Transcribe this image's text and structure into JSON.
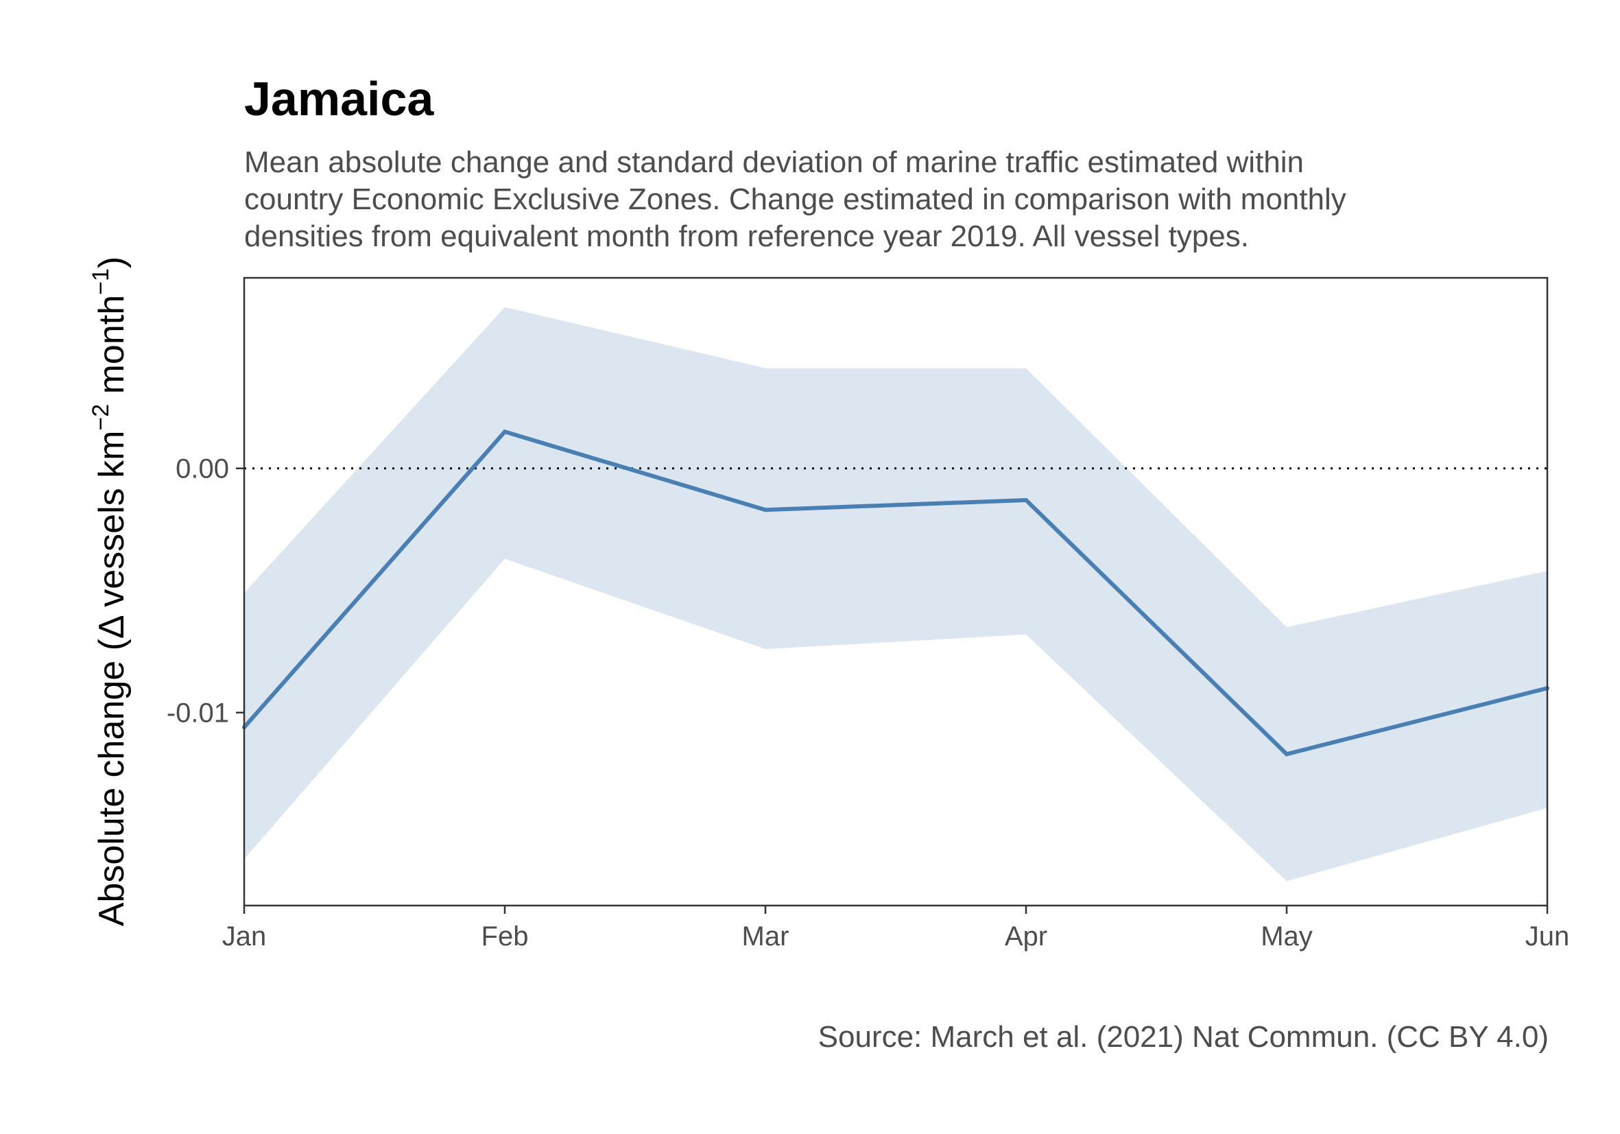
{
  "chart_data": {
    "type": "line",
    "title": "Jamaica",
    "subtitle_lines": [
      "Mean absolute change and standard deviation of marine traffic estimated within",
      "country Economic Exclusive Zones. Change estimated in comparison with monthly",
      "densities from equivalent month from reference year 2019. All vessel types."
    ],
    "caption": "Source: March et al. (2021) Nat Commun. (CC BY 4.0)",
    "ylabel": {
      "before": "Absolute change (",
      "delta": "Δ",
      "vessels": " vessels km",
      "exp1": "−2",
      "month": " month",
      "exp2": "−1",
      "after": ")"
    },
    "xlabel": "",
    "categories": [
      "Jan",
      "Feb",
      "Mar",
      "Apr",
      "May",
      "Jun"
    ],
    "y_ticks": [
      {
        "value": 0.0,
        "label": "0.00"
      },
      {
        "value": -0.01,
        "label": "-0.01"
      }
    ],
    "ylim": [
      -0.0179,
      0.0078
    ],
    "series": [
      {
        "mean": [
          -0.0106,
          0.0015,
          -0.0017,
          -0.0013,
          -0.0117,
          -0.009
        ],
        "lower": [
          -0.016,
          -0.0037,
          -0.0074,
          -0.0068,
          -0.0169,
          -0.0139
        ],
        "upper": [
          -0.0051,
          0.0066,
          0.0041,
          0.0041,
          -0.0065,
          -0.0042
        ]
      }
    ],
    "reference_line": {
      "value": 0,
      "style": "dotted"
    },
    "grid": false,
    "colors": {
      "line": "#4a7fb4",
      "band": "#dce6f0",
      "reference": "#000000",
      "frame": "#333333"
    }
  }
}
